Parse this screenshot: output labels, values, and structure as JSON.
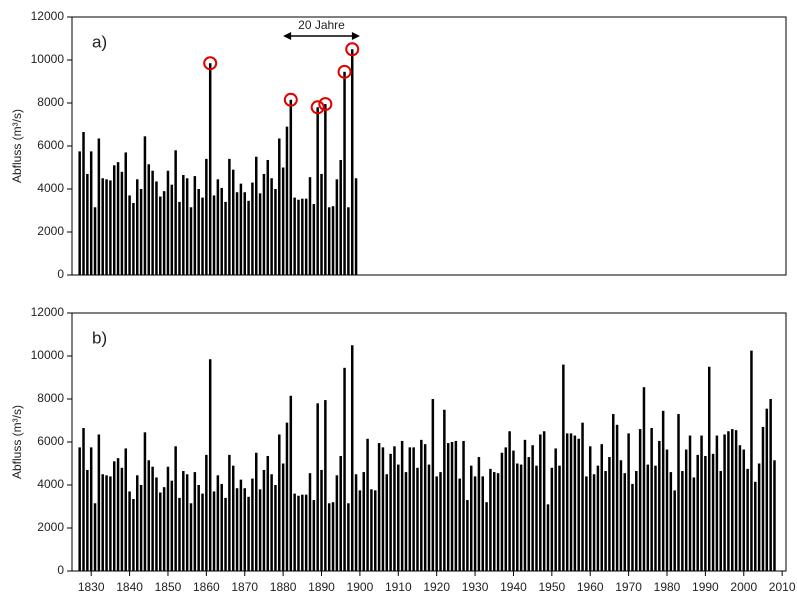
{
  "chart_data": [
    {
      "type": "bar",
      "panel_label": "a)",
      "ylabel": "Abfluss (m³/s)",
      "color": "#000000",
      "xlim": [
        1825,
        2011
      ],
      "ylim": [
        0,
        12000
      ],
      "yticks": [
        0,
        2000,
        4000,
        6000,
        8000,
        10000,
        12000
      ],
      "x": [
        1827,
        1828,
        1829,
        1830,
        1831,
        1832,
        1833,
        1834,
        1835,
        1836,
        1837,
        1838,
        1839,
        1840,
        1841,
        1842,
        1843,
        1844,
        1845,
        1846,
        1847,
        1848,
        1849,
        1850,
        1851,
        1852,
        1853,
        1854,
        1855,
        1856,
        1857,
        1858,
        1859,
        1860,
        1861,
        1862,
        1863,
        1864,
        1865,
        1866,
        1867,
        1868,
        1869,
        1870,
        1871,
        1872,
        1873,
        1874,
        1875,
        1876,
        1877,
        1878,
        1879,
        1880,
        1881,
        1882,
        1883,
        1884,
        1885,
        1886,
        1887,
        1888,
        1889,
        1890,
        1891,
        1892,
        1893,
        1894,
        1895,
        1896,
        1897,
        1898,
        1899
      ],
      "values": [
        5750,
        6650,
        4700,
        5750,
        3150,
        6350,
        4500,
        4450,
        4400,
        5100,
        5250,
        4800,
        5700,
        3700,
        3350,
        4450,
        4000,
        6450,
        5150,
        4850,
        4350,
        3650,
        3900,
        4850,
        4200,
        5800,
        3400,
        4650,
        4500,
        3150,
        4600,
        4000,
        3600,
        5400,
        9850,
        3700,
        4450,
        4050,
        3400,
        5400,
        4900,
        3850,
        4250,
        3850,
        3450,
        4300,
        5500,
        3800,
        4700,
        5350,
        4500,
        4000,
        6350,
        5000,
        6900,
        8150,
        3600,
        3500,
        3550,
        3550,
        4550,
        3300,
        7800,
        4700,
        7950,
        3150,
        3200,
        4450,
        5350,
        9450,
        3150,
        10500,
        4500
      ],
      "highlighted": [
        1861,
        1882,
        1889,
        1891,
        1896,
        1898
      ],
      "highlight_color": "#e00000",
      "annotation": {
        "text": "20 Jahre",
        "span": [
          1880,
          1900
        ]
      }
    },
    {
      "type": "bar",
      "panel_label": "b)",
      "ylabel": "Abfluss (m³/s)",
      "color": "#000000",
      "xlim": [
        1825,
        2011
      ],
      "ylim": [
        0,
        12000
      ],
      "yticks": [
        0,
        2000,
        4000,
        6000,
        8000,
        10000,
        12000
      ],
      "xticks": [
        1830,
        1840,
        1850,
        1860,
        1870,
        1880,
        1890,
        1900,
        1910,
        1920,
        1930,
        1940,
        1950,
        1960,
        1970,
        1980,
        1990,
        2000,
        2010
      ],
      "x": [
        1827,
        1828,
        1829,
        1830,
        1831,
        1832,
        1833,
        1834,
        1835,
        1836,
        1837,
        1838,
        1839,
        1840,
        1841,
        1842,
        1843,
        1844,
        1845,
        1846,
        1847,
        1848,
        1849,
        1850,
        1851,
        1852,
        1853,
        1854,
        1855,
        1856,
        1857,
        1858,
        1859,
        1860,
        1861,
        1862,
        1863,
        1864,
        1865,
        1866,
        1867,
        1868,
        1869,
        1870,
        1871,
        1872,
        1873,
        1874,
        1875,
        1876,
        1877,
        1878,
        1879,
        1880,
        1881,
        1882,
        1883,
        1884,
        1885,
        1886,
        1887,
        1888,
        1889,
        1890,
        1891,
        1892,
        1893,
        1894,
        1895,
        1896,
        1897,
        1898,
        1899,
        1900,
        1901,
        1902,
        1903,
        1904,
        1905,
        1906,
        1907,
        1908,
        1909,
        1910,
        1911,
        1912,
        1913,
        1914,
        1915,
        1916,
        1917,
        1918,
        1919,
        1920,
        1921,
        1922,
        1923,
        1924,
        1925,
        1926,
        1927,
        1928,
        1929,
        1930,
        1931,
        1932,
        1933,
        1934,
        1935,
        1936,
        1937,
        1938,
        1939,
        1940,
        1941,
        1942,
        1943,
        1944,
        1945,
        1946,
        1947,
        1948,
        1949,
        1950,
        1951,
        1952,
        1953,
        1954,
        1955,
        1956,
        1957,
        1958,
        1959,
        1960,
        1961,
        1962,
        1963,
        1964,
        1965,
        1966,
        1967,
        1968,
        1969,
        1970,
        1971,
        1972,
        1973,
        1974,
        1975,
        1976,
        1977,
        1978,
        1979,
        1980,
        1981,
        1982,
        1983,
        1984,
        1985,
        1986,
        1987,
        1988,
        1989,
        1990,
        1991,
        1992,
        1993,
        1994,
        1995,
        1996,
        1997,
        1998,
        1999,
        2000,
        2001,
        2002,
        2003,
        2004,
        2005,
        2006,
        2007,
        2008
      ],
      "values": [
        5750,
        6650,
        4700,
        5750,
        3150,
        6350,
        4500,
        4450,
        4400,
        5100,
        5250,
        4800,
        5700,
        3700,
        3350,
        4450,
        4000,
        6450,
        5150,
        4850,
        4350,
        3650,
        3900,
        4850,
        4200,
        5800,
        3400,
        4650,
        4500,
        3150,
        4600,
        4000,
        3600,
        5400,
        9850,
        3700,
        4450,
        4050,
        3400,
        5400,
        4900,
        3850,
        4250,
        3850,
        3450,
        4300,
        5500,
        3800,
        4700,
        5350,
        4500,
        4000,
        6350,
        5000,
        6900,
        8150,
        3600,
        3500,
        3550,
        3550,
        4550,
        3300,
        7800,
        4700,
        7950,
        3150,
        3200,
        4450,
        5350,
        9450,
        3150,
        10500,
        4500,
        3750,
        4600,
        6150,
        3800,
        3750,
        5950,
        5750,
        4500,
        5450,
        5800,
        4950,
        6050,
        4600,
        5750,
        5750,
        4800,
        6100,
        5900,
        4950,
        8000,
        4400,
        4600,
        7500,
        5950,
        6000,
        6050,
        4300,
        6050,
        3300,
        4900,
        4400,
        5300,
        4400,
        3200,
        4750,
        4600,
        4550,
        5500,
        5750,
        6500,
        5600,
        5000,
        4950,
        6100,
        5300,
        5850,
        4900,
        6350,
        6500,
        3100,
        4800,
        5700,
        4900,
        9600,
        6400,
        6400,
        6300,
        6150,
        6900,
        4400,
        5800,
        4500,
        4900,
        5900,
        4650,
        5300,
        7300,
        6800,
        5150,
        4550,
        6400,
        4050,
        4650,
        6600,
        8550,
        4950,
        6650,
        4900,
        6050,
        7450,
        5650,
        4600,
        3750,
        7300,
        4650,
        5650,
        6300,
        4350,
        5400,
        6300,
        5350,
        9500,
        5450,
        6300,
        4650,
        6350,
        6500,
        6600,
        6550,
        5850,
        5650,
        4750,
        10250,
        4150,
        5000,
        6700,
        7550,
        8000,
        5150
      ]
    }
  ]
}
